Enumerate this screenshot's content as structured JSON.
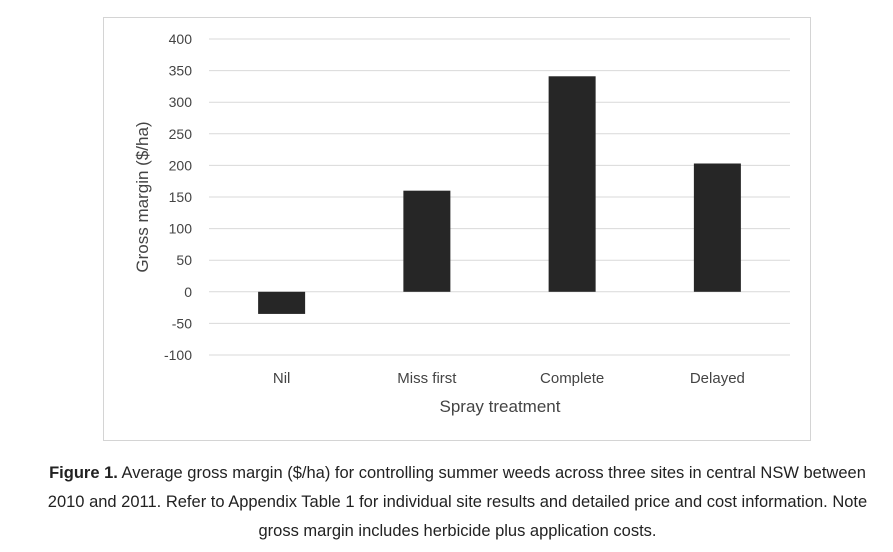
{
  "chart_data": {
    "type": "bar",
    "categories": [
      "Nil",
      "Miss first",
      "Complete",
      "Delayed"
    ],
    "values": [
      -35,
      160,
      341,
      203
    ],
    "xlabel": "Spray treatment",
    "ylabel": "Gross margin ($/ha)",
    "ylim": [
      -100,
      400
    ],
    "yticks": [
      400,
      350,
      300,
      250,
      200,
      150,
      100,
      50,
      0,
      -50,
      -100
    ],
    "grid": true,
    "bar_color": "#262626",
    "grid_color": "#d9d9d9"
  },
  "caption": {
    "label": "Figure 1.",
    "text": " Average gross margin ($/ha) for controlling summer weeds across three sites in central NSW between 2010 and 2011. Refer to Appendix Table 1 for individual site results and detailed price and cost information. Note gross margin includes herbicide plus application costs."
  }
}
